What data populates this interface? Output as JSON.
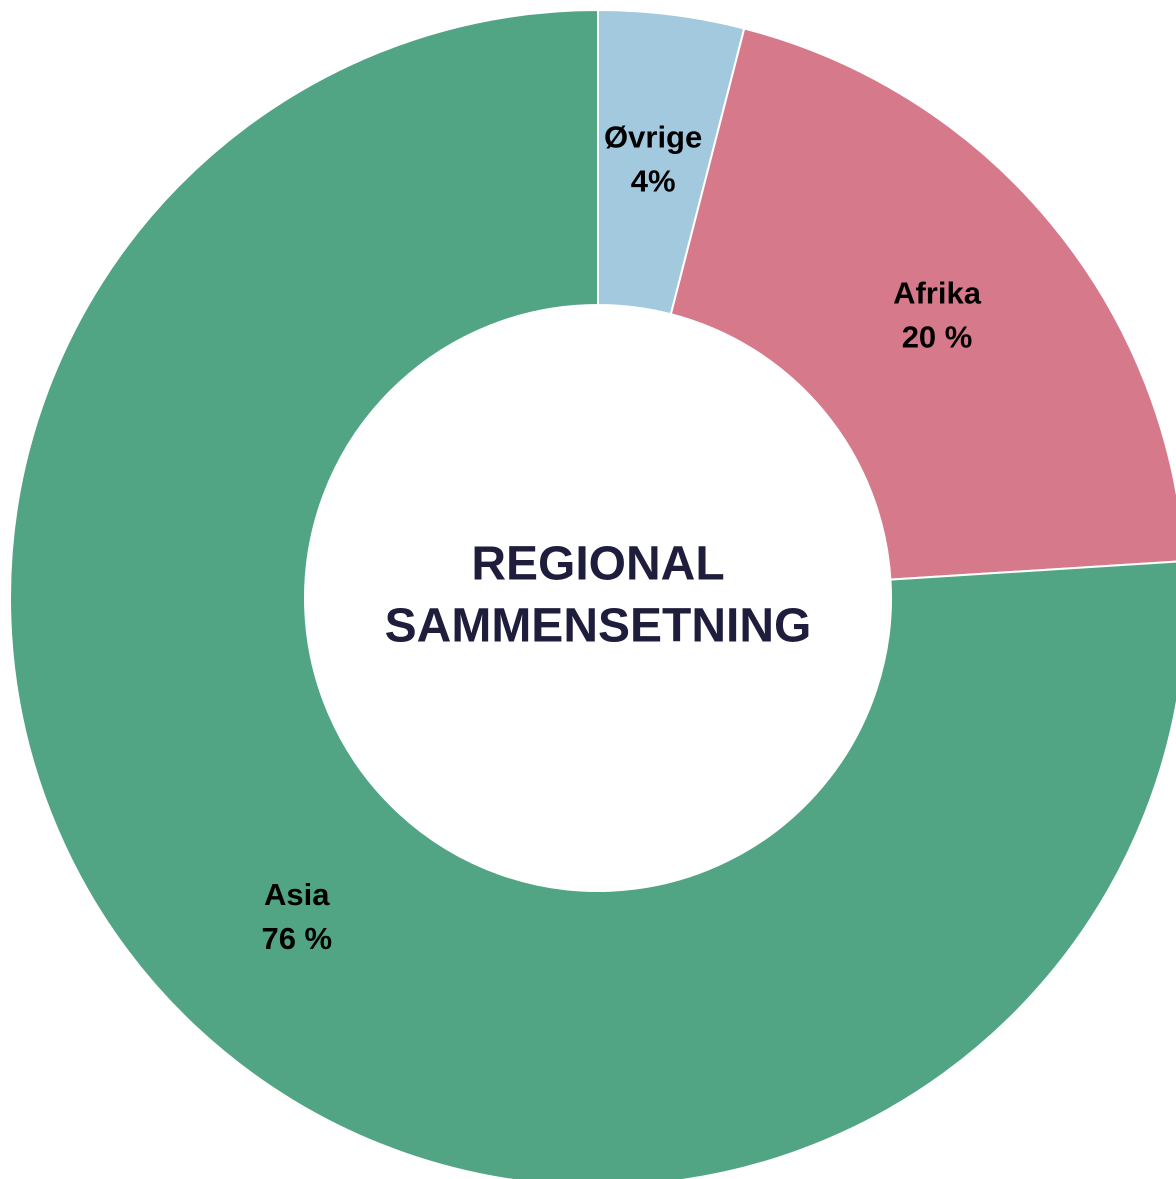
{
  "chart_data": {
    "type": "pie",
    "title": [
      "REGIONAL",
      "SAMMENSETNING"
    ],
    "categories": [
      "Øvrige",
      "Afrika",
      "Asia"
    ],
    "values": [
      4,
      20,
      76
    ],
    "value_labels": [
      "4%",
      "20 %",
      "76 %"
    ],
    "colors": [
      "#a3c9de",
      "#d67a8b",
      "#52a584"
    ]
  }
}
